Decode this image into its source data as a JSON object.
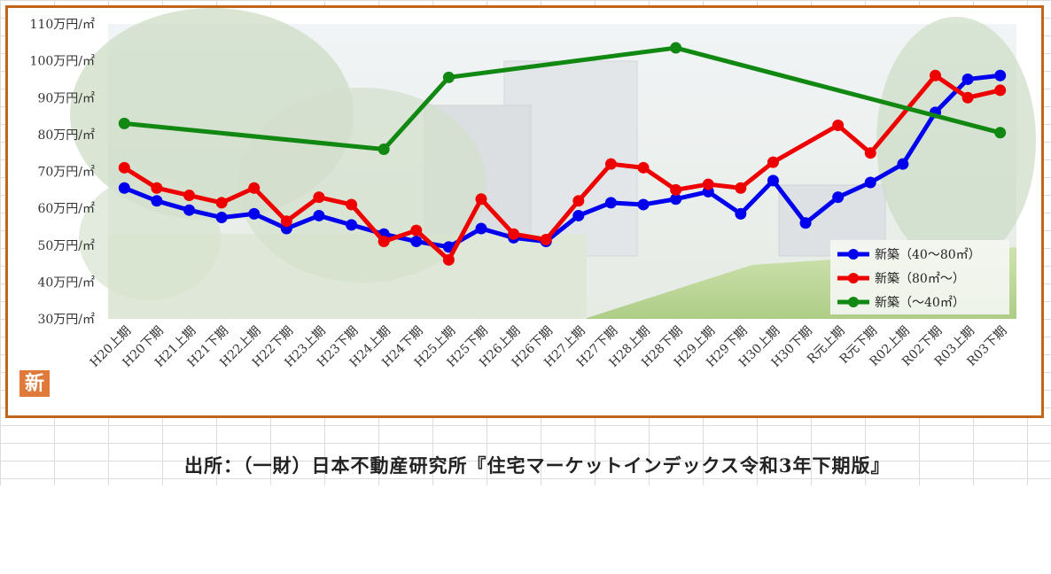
{
  "badge_text": "新",
  "source_text": "出所：（一財）日本不動産研究所『住宅マーケットインデックス令和3年下期版』",
  "chart_data": {
    "type": "line",
    "title": "",
    "xlabel": "",
    "ylabel": "",
    "ylim": [
      30,
      110
    ],
    "yticks": [
      30,
      40,
      50,
      60,
      70,
      80,
      90,
      100,
      110
    ],
    "ytick_labels": [
      "30万円/㎡",
      "40万円/㎡",
      "50万円/㎡",
      "60万円/㎡",
      "70万円/㎡",
      "80万円/㎡",
      "90万円/㎡",
      "100万円/㎡",
      "110万円/㎡"
    ],
    "grid": false,
    "legend_position": "bottom-right",
    "categories": [
      "H20上期",
      "H20下期",
      "H21上期",
      "H21下期",
      "H22上期",
      "H22下期",
      "H23上期",
      "H23下期",
      "H24上期",
      "H24下期",
      "H25上期",
      "H25下期",
      "H26上期",
      "H26下期",
      "H27上期",
      "H27下期",
      "H28上期",
      "H28下期",
      "H29上期",
      "H29下期",
      "H30上期",
      "H30下期",
      "R元上期",
      "R元下期",
      "R02上期",
      "R02下期",
      "R03上期",
      "R03下期"
    ],
    "series": [
      {
        "name": "新築（40～80㎡）",
        "color": "#0000ee",
        "values": [
          65.5,
          62,
          59.5,
          57.5,
          58.5,
          54.5,
          58,
          55.5,
          53,
          51,
          49.5,
          54.5,
          52,
          51,
          58,
          61.5,
          61,
          62.5,
          64.5,
          58.5,
          67.5,
          56,
          63,
          67,
          72,
          86,
          95,
          96
        ]
      },
      {
        "name": "新築（80㎡～）",
        "color": "#ee0000",
        "values": [
          71,
          65.5,
          63.5,
          61.5,
          65.5,
          56.5,
          63,
          61,
          51,
          54,
          46,
          62.5,
          53,
          51.5,
          62,
          72,
          71,
          65,
          66.5,
          65.5,
          72.5,
          null,
          82.5,
          75,
          null,
          96,
          90,
          92
        ]
      },
      {
        "name": "新築（～40㎡）",
        "color": "#118811",
        "values": [
          83,
          null,
          null,
          null,
          null,
          null,
          null,
          null,
          76,
          null,
          95.5,
          null,
          null,
          null,
          null,
          null,
          null,
          103.5,
          null,
          null,
          null,
          null,
          null,
          null,
          null,
          null,
          null,
          80.5
        ]
      }
    ]
  }
}
